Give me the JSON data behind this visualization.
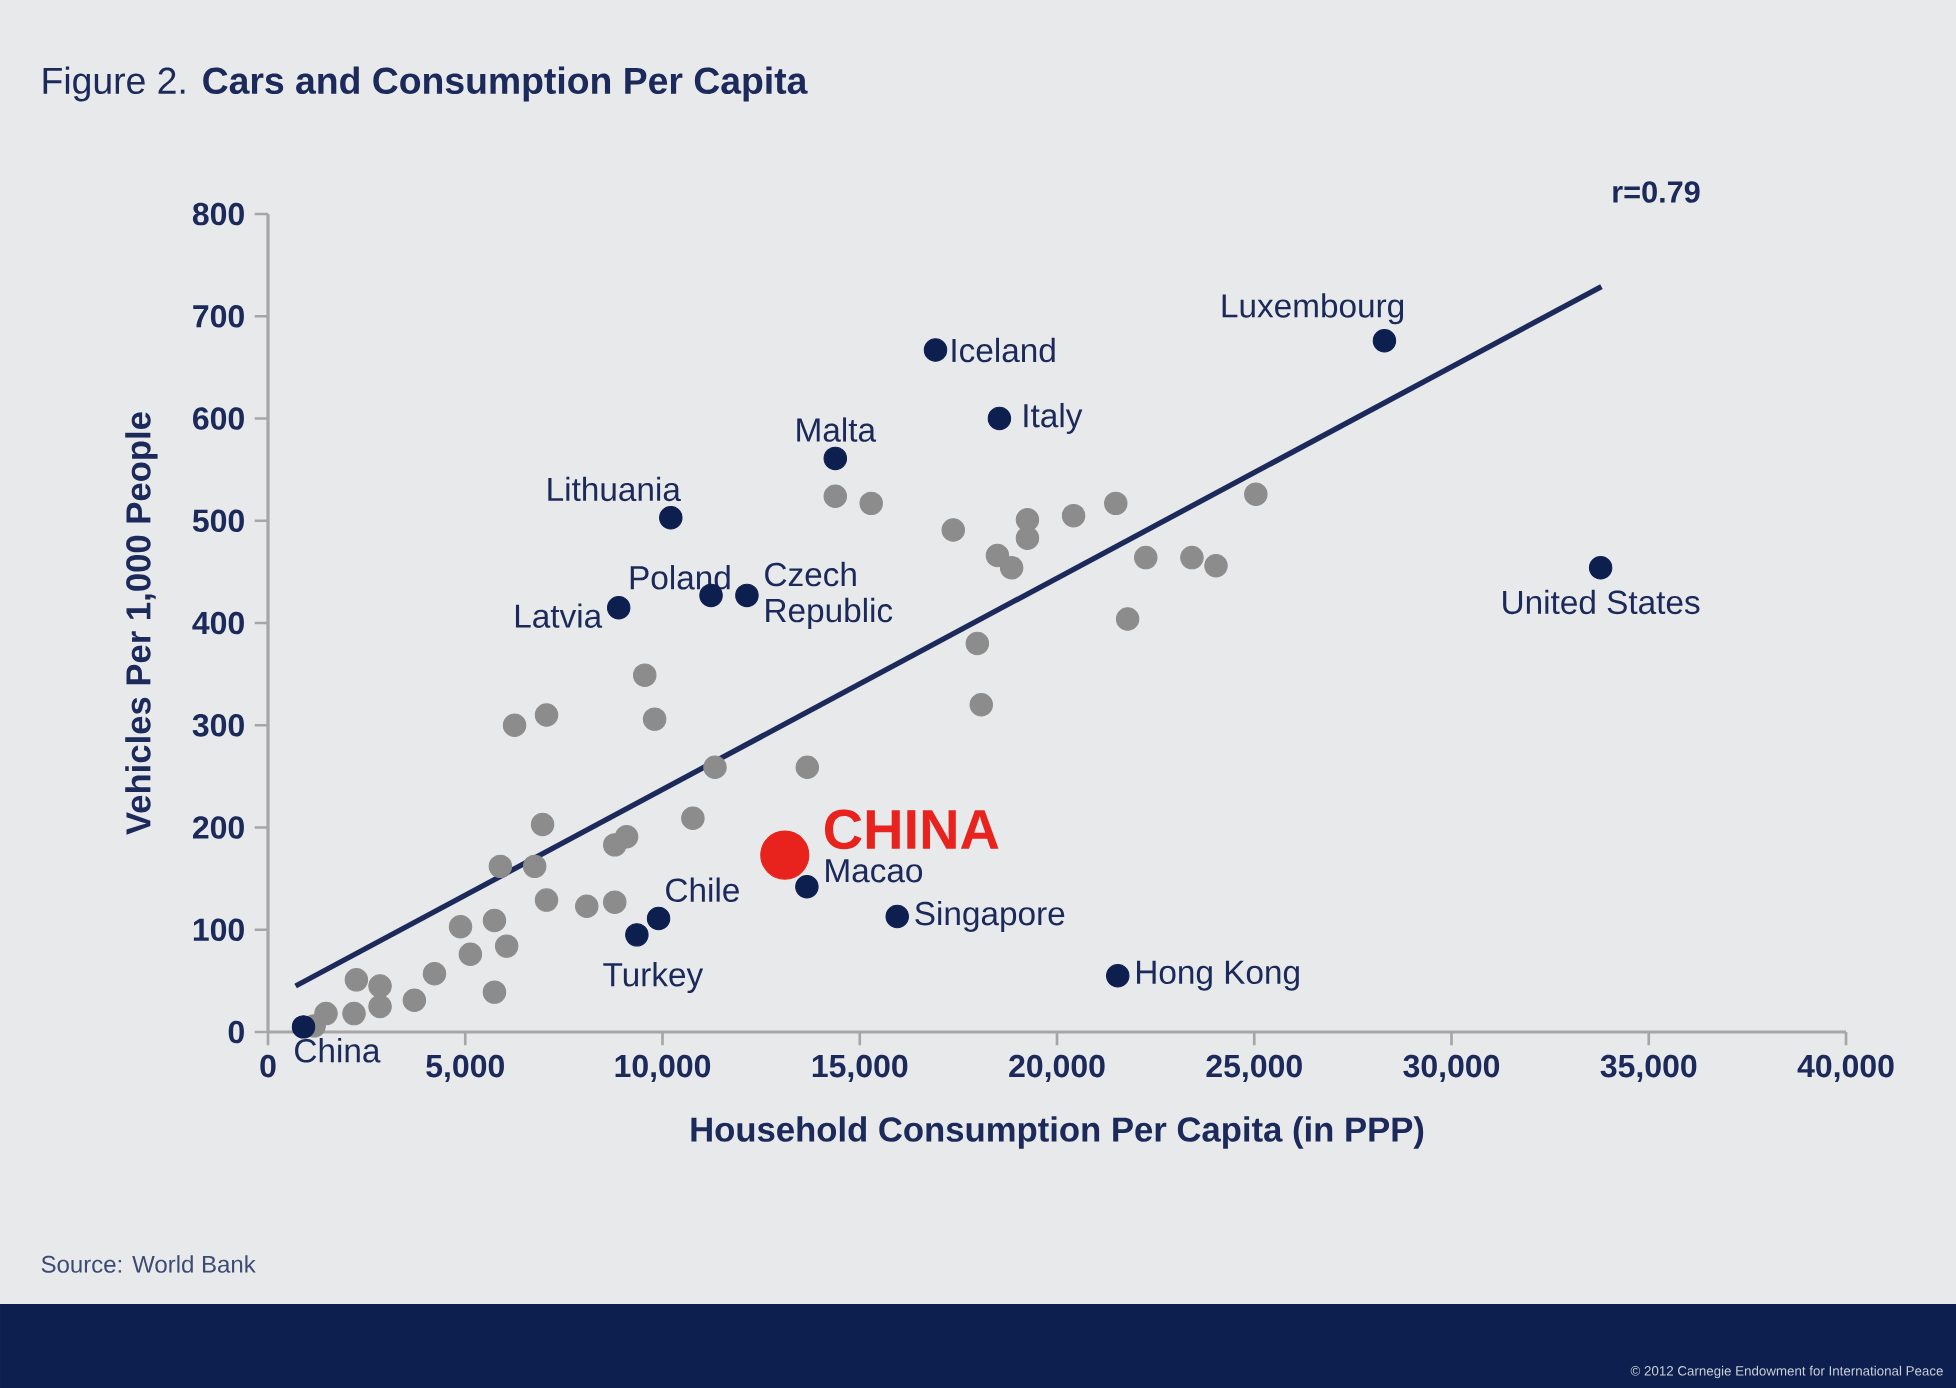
{
  "chart_data": {
    "type": "scatter",
    "title": "Figure 2. **Cars and Consumption Per Capita**",
    "xlabel": "Household Consumption Per Capita (in PPP)",
    "ylabel": "Vehicles Per 1,000 People",
    "xlim": [
      0,
      40000
    ],
    "ylim": [
      0,
      800
    ],
    "xticks": [
      0,
      {
        "value": 5000,
        "label": "5,000"
      },
      {
        "value": 10000,
        "label": "10,000"
      },
      {
        "value": 15000,
        "label": "15,000"
      },
      {
        "value": 20000,
        "label": "20,000"
      },
      {
        "value": 25000,
        "label": "25,000"
      },
      {
        "value": 30000,
        "label": "30,000"
      },
      {
        "value": 35000,
        "label": "35,000"
      },
      {
        "value": 40000,
        "label": "40,000"
      }
    ],
    "yticks": [
      0,
      100,
      200,
      300,
      400,
      500,
      600,
      700,
      800
    ],
    "series": [
      {
        "marker": "circle",
        "color": "#8c8c8c",
        "x": [
          9550,
          6250,
          7060,
          9800,
          11330,
          13670,
          6960,
          10770,
          8790,
          9090,
          5890,
          6760,
          7060,
          8080,
          8790,
          4880,
          5740,
          5130,
          6050,
          4220,
          5740,
          2240,
          2840,
          3710,
          2840,
          1470,
          2180,
          1170,
          14380,
          15290,
          17370,
          19250,
          19250,
          20420,
          21490,
          25040,
          18490,
          18850,
          22250,
          23420,
          24030,
          21790,
          17980,
          18080
        ],
        "values": [
          349,
          300,
          310,
          306,
          259,
          259,
          203,
          209,
          183,
          191,
          162,
          162,
          129,
          123,
          127,
          103,
          109,
          76,
          84,
          57,
          39,
          51,
          45,
          31,
          25,
          18,
          18,
          6,
          524,
          517,
          491,
          501,
          483,
          505,
          517,
          526,
          466,
          454,
          464,
          464,
          456,
          404,
          380,
          320
        ]
      },
      {
        "marker": "circle",
        "color": "#0d1f4f",
        "x": [
          900,
          9350,
          9900,
          13660,
          15950,
          21540,
          33780,
          28300,
          16920,
          18540,
          14380,
          10210,
          11230,
          12140,
          8890
        ],
        "values": [
          5,
          95,
          111,
          142,
          113,
          55,
          454,
          676,
          667,
          600,
          561,
          503,
          427,
          427,
          415
        ]
      },
      {
        "name": "CHINA",
        "marker": "circle",
        "color": "#e8221c",
        "x": [
          13100
        ],
        "values": [
          173
        ]
      },
      {
        "type": "line",
        "marker": "none",
        "color": "#1b2a5a",
        "x": [
          700,
          33800
        ],
        "values": [
          45,
          729
        ]
      }
    ],
    "annotations": [
      {
        "text": "China",
        "x": 900,
        "y": 5
      },
      {
        "text": "Turkey",
        "x": 9350,
        "y": 95
      },
      {
        "text": "Chile",
        "x": 9900,
        "y": 111
      },
      {
        "text": "Macao",
        "x": 13660,
        "y": 142
      },
      {
        "text": "Singapore",
        "x": 15950,
        "y": 113
      },
      {
        "text": "Hong Kong",
        "x": 21540,
        "y": 55
      },
      {
        "text": "United States",
        "x": 33780,
        "y": 454
      },
      {
        "text": "Luxembourg",
        "x": 28300,
        "y": 676
      },
      {
        "text": "Iceland",
        "x": 16920,
        "y": 667
      },
      {
        "text": "Italy",
        "x": 18540,
        "y": 600
      },
      {
        "text": "Malta",
        "x": 14380,
        "y": 561
      },
      {
        "text": "Lithuania",
        "x": 10210,
        "y": 503
      },
      {
        "text": "Poland",
        "x": 11230,
        "y": 427
      },
      {
        "text": "Czech Republic",
        "x": 12140,
        "y": 427
      },
      {
        "text": "Latvia",
        "x": 8890,
        "y": 415
      },
      "r=0.79",
      "Source: World Bank",
      "© 2012 Carnegie Endowment for International Peace"
    ]
  }
}
